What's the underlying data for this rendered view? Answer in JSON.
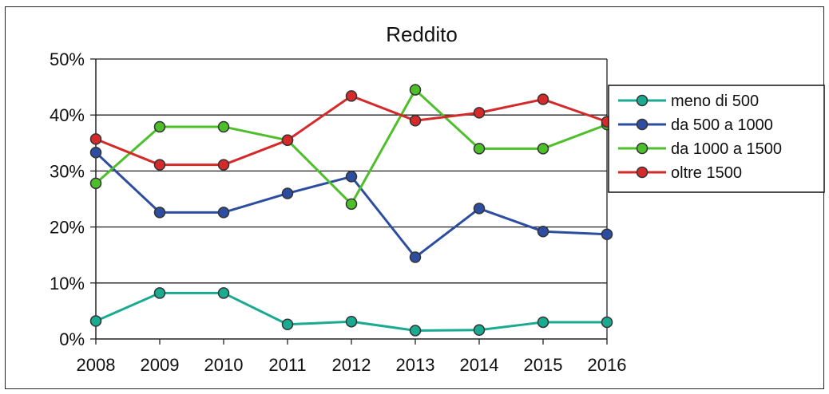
{
  "chart_data": {
    "type": "line",
    "title": "Reddito",
    "xlabel": "",
    "ylabel": "",
    "categories": [
      "2008",
      "2009",
      "2010",
      "2011",
      "2012",
      "2013",
      "2014",
      "2015",
      "2016"
    ],
    "ylim": [
      0,
      50
    ],
    "yticks": [
      "0%",
      "10%",
      "20%",
      "30%",
      "40%",
      "50%"
    ],
    "grid": "horizontal",
    "legend_position": "right",
    "series": [
      {
        "name": "meno di 500",
        "color": "#1aaa90",
        "values": [
          3.2,
          8.2,
          8.2,
          2.6,
          3.1,
          1.5,
          1.6,
          3.0,
          3.0
        ]
      },
      {
        "name": "da 500 a 1000",
        "color": "#2d4ea0",
        "values": [
          33.3,
          22.6,
          22.6,
          26.0,
          29.0,
          14.6,
          23.3,
          19.2,
          18.7
        ]
      },
      {
        "name": "da 1000 a 1500",
        "color": "#4cbf2a",
        "values": [
          27.8,
          37.9,
          37.9,
          35.5,
          24.1,
          44.5,
          34.0,
          34.0,
          38.3
        ]
      },
      {
        "name": "oltre 1500",
        "color": "#d42a2a",
        "values": [
          35.7,
          31.1,
          31.1,
          35.5,
          43.4,
          39.0,
          40.4,
          42.8,
          38.8
        ]
      }
    ]
  }
}
